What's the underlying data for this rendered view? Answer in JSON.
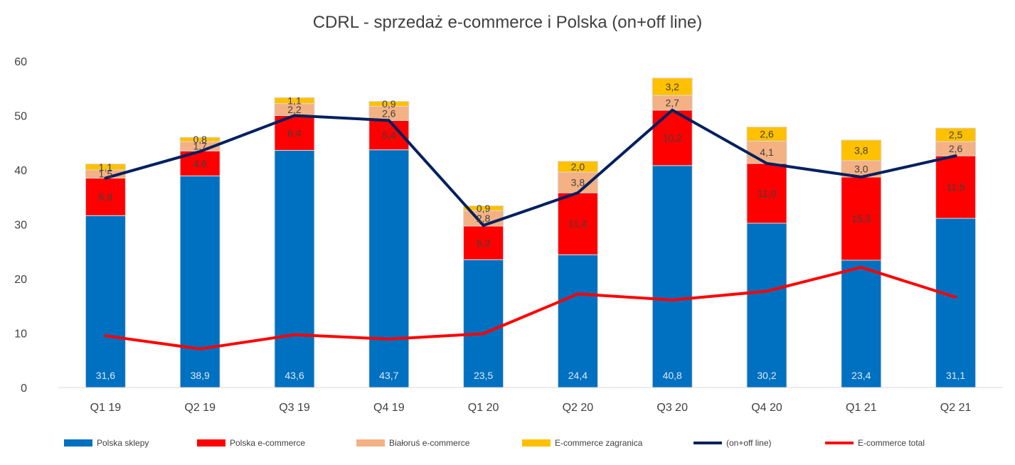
{
  "chart_data": {
    "type": "bar",
    "title": "CDRL - sprzedaż e-commerce i Polska (on+off line)",
    "categories": [
      "Q1 19",
      "Q2 19",
      "Q3 19",
      "Q4 19",
      "Q1 20",
      "Q2 20",
      "Q3 20",
      "Q4 20",
      "Q1 21",
      "Q2 21"
    ],
    "ylim": [
      0,
      60
    ],
    "yticks": [
      0,
      10,
      20,
      30,
      40,
      50,
      60
    ],
    "grid": false,
    "legend_position": "bottom",
    "bar_series": [
      {
        "name": "Polska sklepy",
        "color": "#0070C0",
        "label_color": "#DDE8F5",
        "values": [
          31.6,
          38.9,
          43.6,
          43.7,
          23.5,
          24.4,
          40.8,
          30.2,
          23.4,
          31.1
        ],
        "labels": [
          "31,6",
          "38,9",
          "43,6",
          "43,7",
          "23,5",
          "24,4",
          "40,8",
          "30,2",
          "23,4",
          "31,1"
        ],
        "label_pos": "bottom"
      },
      {
        "name": "Polska e-commerce",
        "color": "#FF0000",
        "label_color": "#404040",
        "values": [
          6.9,
          4.6,
          6.4,
          5.4,
          6.2,
          11.4,
          10.2,
          11.0,
          15.3,
          11.5
        ],
        "labels": [
          "6,9",
          "4,6",
          "6,4",
          "5,4",
          "6,2",
          "11,4",
          "10,2",
          "11,0",
          "15,3",
          "11,5"
        ],
        "label_pos": "center"
      },
      {
        "name": "Białoruś e-commerce",
        "color": "#F4B183",
        "label_color": "#404040",
        "values": [
          1.5,
          1.7,
          2.2,
          2.6,
          2.8,
          3.8,
          2.7,
          4.1,
          3.0,
          2.6
        ],
        "labels": [
          "1,5",
          "1,7",
          "2,2",
          "2,6",
          "2,8",
          "3,8",
          "2,7",
          "4,1",
          "3,0",
          "2,6"
        ],
        "label_pos": "center"
      },
      {
        "name": "E-commerce  zagranica",
        "color": "#FFC000",
        "label_color": "#404040",
        "values": [
          1.1,
          0.8,
          1.1,
          0.9,
          0.9,
          2.0,
          3.2,
          2.6,
          3.8,
          2.5
        ],
        "labels": [
          "1,1",
          "0,8",
          "1,1",
          "0,9",
          "0,9",
          "2,0",
          "3,2",
          "2,6",
          "3,8",
          "2,5"
        ],
        "label_pos": "center"
      }
    ],
    "line_series": [
      {
        "name": "(on+off line)",
        "color": "#002060",
        "values": [
          38.5,
          43.4,
          50.0,
          49.1,
          29.8,
          35.8,
          51.0,
          41.2,
          38.7,
          42.6
        ]
      },
      {
        "name": "E-commerce total",
        "color": "#FF0000",
        "values": [
          9.5,
          7.1,
          9.7,
          8.9,
          9.9,
          17.2,
          16.1,
          17.7,
          22.1,
          16.6
        ]
      }
    ]
  }
}
